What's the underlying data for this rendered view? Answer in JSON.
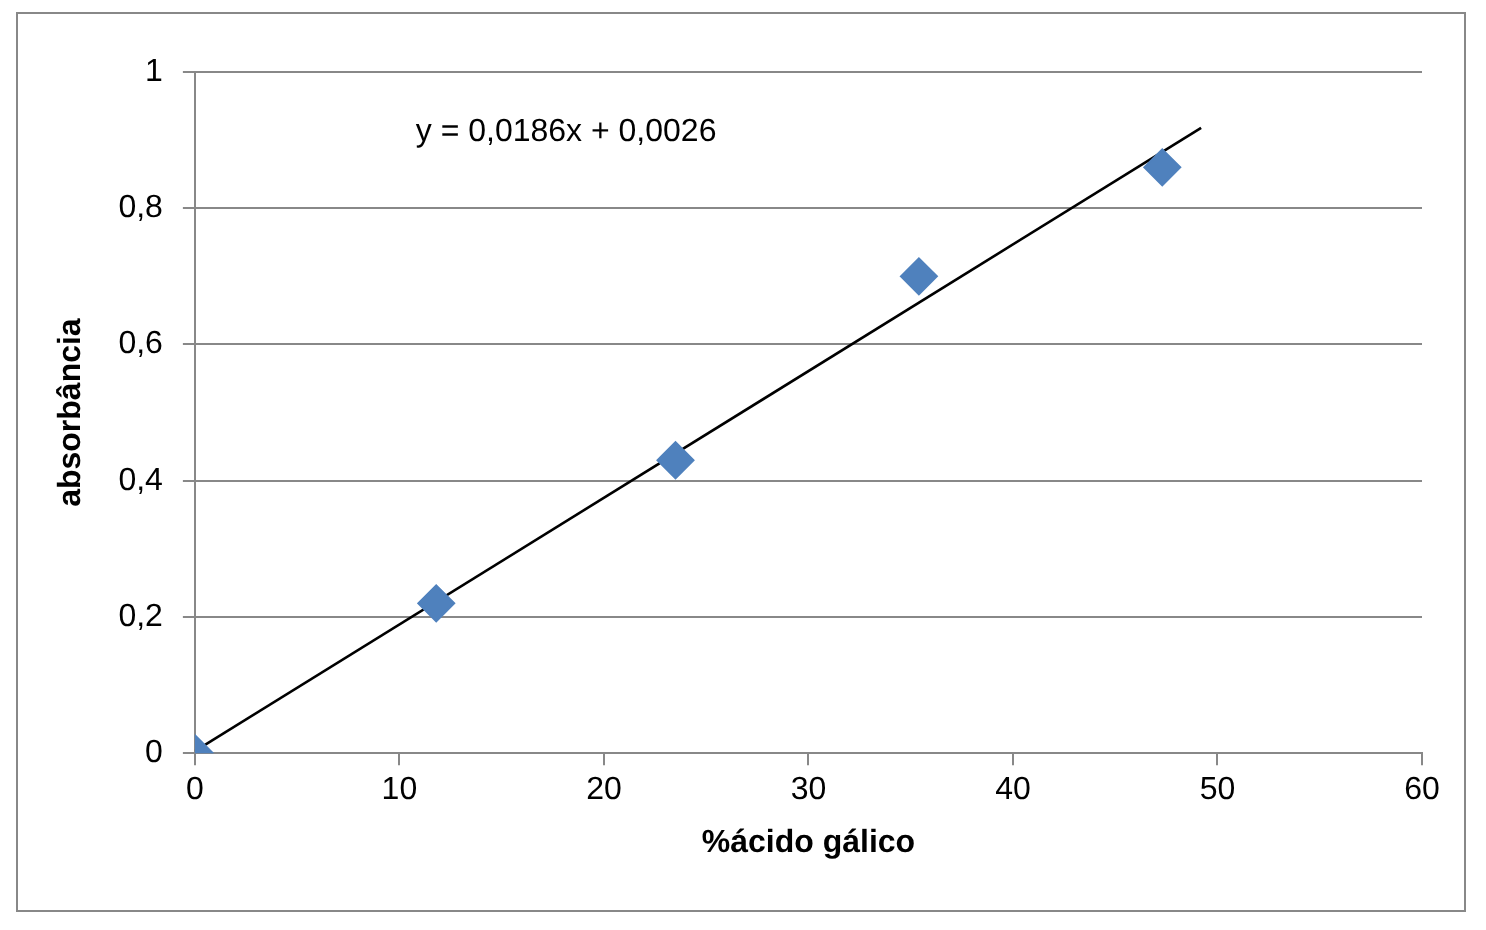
{
  "chart_data": {
    "type": "scatter",
    "xlabel": "%ácido gálico",
    "ylabel": "absorbância",
    "annotations": [
      "y = 0,0186x + 0,0026"
    ],
    "series": [
      {
        "type": "scatter",
        "color": "#4f81bd",
        "x": [
          0,
          11.8,
          23.5,
          35.4,
          47.3
        ],
        "values": [
          0,
          0.22,
          0.43,
          0.7,
          0.86
        ],
        "marker": "diamond"
      },
      {
        "type": "line",
        "color": "#000000",
        "x": [
          0,
          49.2
        ],
        "values": [
          0.003,
          0.918
        ],
        "marker": "none"
      }
    ],
    "xlim": [
      0,
      60
    ],
    "xticks": [
      0,
      10,
      20,
      30,
      40,
      50,
      60
    ],
    "ylim": [
      0,
      1
    ],
    "yticks": [
      0,
      {
        "value": 0.2,
        "label": "0,2"
      },
      {
        "value": 0.4,
        "label": "0,4"
      },
      {
        "value": 0.6,
        "label": "0,6"
      },
      {
        "value": 0.8,
        "label": "0,8"
      },
      1
    ],
    "grid": "y",
    "legend": false
  }
}
